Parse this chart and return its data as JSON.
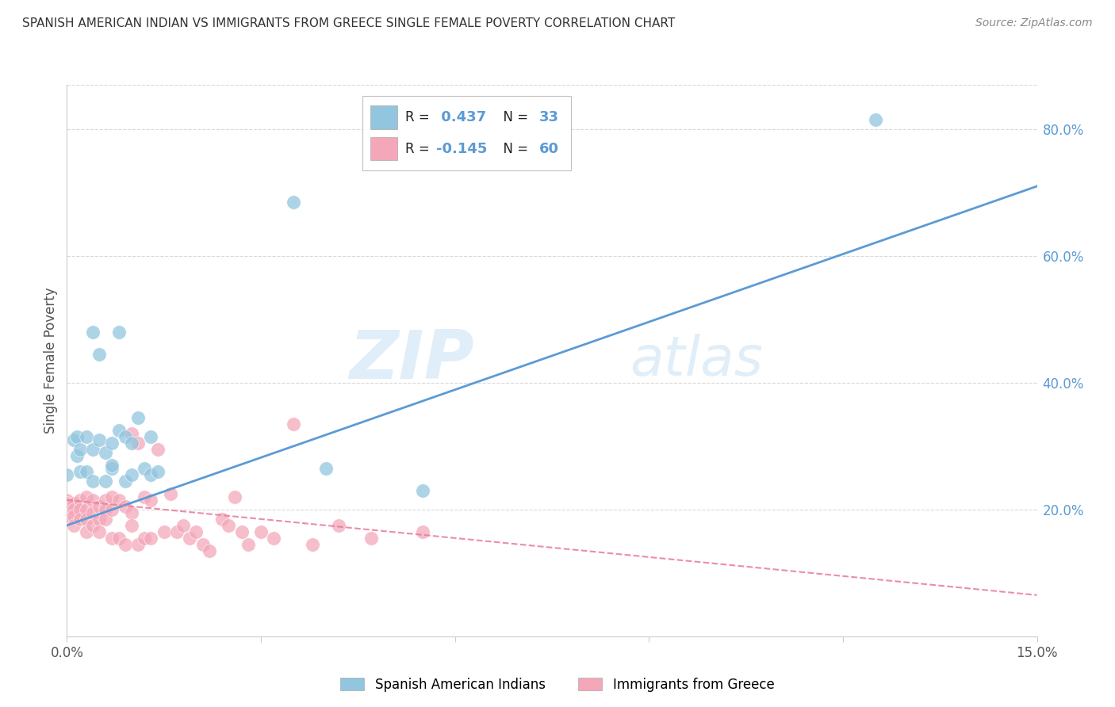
{
  "title": "SPANISH AMERICAN INDIAN VS IMMIGRANTS FROM GREECE SINGLE FEMALE POVERTY CORRELATION CHART",
  "source": "Source: ZipAtlas.com",
  "ylabel": "Single Female Poverty",
  "xlim": [
    0.0,
    0.15
  ],
  "ylim": [
    0.0,
    0.87
  ],
  "color_blue": "#92c5de",
  "color_pink": "#f4a7b9",
  "color_blue_line": "#5b9bd5",
  "color_pink_line": "#e8799a",
  "watermark_zip": "ZIP",
  "watermark_atlas": "atlas",
  "legend_label1": "Spanish American Indians",
  "legend_label2": "Immigrants from Greece",
  "legend_R1": "R = ",
  "legend_V1": " 0.437",
  "legend_N1_label": "N = ",
  "legend_N1_val": "33",
  "legend_R2": "R = ",
  "legend_V2": "-0.145",
  "legend_N2_label": "N = ",
  "legend_N2_val": "60",
  "blue_line_x0": 0.0,
  "blue_line_x1": 0.15,
  "blue_line_y0": 0.175,
  "blue_line_y1": 0.71,
  "pink_line_x0": 0.0,
  "pink_line_x1": 0.15,
  "pink_line_y0": 0.215,
  "pink_line_y1": 0.065,
  "blue_scatter_x": [
    0.0015,
    0.0,
    0.001,
    0.0015,
    0.002,
    0.002,
    0.003,
    0.003,
    0.004,
    0.004,
    0.004,
    0.005,
    0.005,
    0.006,
    0.006,
    0.007,
    0.007,
    0.007,
    0.008,
    0.008,
    0.009,
    0.009,
    0.01,
    0.01,
    0.011,
    0.012,
    0.013,
    0.013,
    0.014,
    0.035,
    0.04,
    0.055,
    0.125
  ],
  "blue_scatter_y": [
    0.285,
    0.255,
    0.31,
    0.315,
    0.295,
    0.26,
    0.315,
    0.26,
    0.295,
    0.245,
    0.48,
    0.445,
    0.31,
    0.29,
    0.245,
    0.305,
    0.265,
    0.27,
    0.325,
    0.48,
    0.315,
    0.245,
    0.305,
    0.255,
    0.345,
    0.265,
    0.255,
    0.315,
    0.26,
    0.685,
    0.265,
    0.23,
    0.815
  ],
  "pink_scatter_x": [
    0.0,
    0.0,
    0.0,
    0.001,
    0.001,
    0.001,
    0.001,
    0.002,
    0.002,
    0.002,
    0.003,
    0.003,
    0.003,
    0.003,
    0.004,
    0.004,
    0.004,
    0.005,
    0.005,
    0.005,
    0.006,
    0.006,
    0.006,
    0.007,
    0.007,
    0.007,
    0.008,
    0.008,
    0.009,
    0.009,
    0.01,
    0.01,
    0.01,
    0.011,
    0.011,
    0.012,
    0.012,
    0.013,
    0.013,
    0.014,
    0.015,
    0.016,
    0.017,
    0.018,
    0.019,
    0.02,
    0.021,
    0.022,
    0.024,
    0.025,
    0.026,
    0.027,
    0.028,
    0.03,
    0.032,
    0.035,
    0.038,
    0.042,
    0.047,
    0.055
  ],
  "pink_scatter_y": [
    0.215,
    0.21,
    0.19,
    0.21,
    0.2,
    0.19,
    0.175,
    0.215,
    0.2,
    0.185,
    0.22,
    0.2,
    0.185,
    0.165,
    0.215,
    0.195,
    0.175,
    0.205,
    0.185,
    0.165,
    0.215,
    0.2,
    0.185,
    0.22,
    0.2,
    0.155,
    0.215,
    0.155,
    0.205,
    0.145,
    0.32,
    0.195,
    0.175,
    0.305,
    0.145,
    0.22,
    0.155,
    0.215,
    0.155,
    0.295,
    0.165,
    0.225,
    0.165,
    0.175,
    0.155,
    0.165,
    0.145,
    0.135,
    0.185,
    0.175,
    0.22,
    0.165,
    0.145,
    0.165,
    0.155,
    0.335,
    0.145,
    0.175,
    0.155,
    0.165
  ],
  "background_color": "#ffffff",
  "grid_color": "#d0d0d0",
  "right_tick_color": "#5b9bd5",
  "left_spine_color": "#cccccc",
  "bottom_spine_color": "#cccccc"
}
